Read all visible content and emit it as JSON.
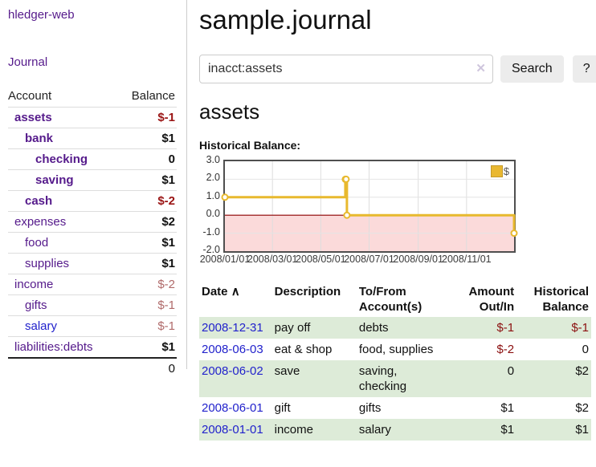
{
  "palette": {
    "link_purple": "#551a8b",
    "link_blue": "#2222cc",
    "negative_bold": "#9a1414",
    "negative_light": "#b06a6a",
    "negative_table": "#8b0f0f",
    "row_green": "#ddebd8",
    "chart_line": "#e8b92e",
    "chart_negative_fill": "#fbdada",
    "chart_zero_line": "#8b0000",
    "button_gray": "#ececec"
  },
  "sidebar": {
    "brand": "hledger-web",
    "nav": {
      "journal": "Journal"
    },
    "table": {
      "headers": {
        "account": "Account",
        "balance": "Balance"
      },
      "rows": [
        {
          "name": "assets",
          "balance": "$-1"
        },
        {
          "name": "bank",
          "balance": "$1"
        },
        {
          "name": "checking",
          "balance": "0"
        },
        {
          "name": "saving",
          "balance": "$1"
        },
        {
          "name": "cash",
          "balance": "$-2"
        },
        {
          "name": "expenses",
          "balance": "$2"
        },
        {
          "name": "food",
          "balance": "$1"
        },
        {
          "name": "supplies",
          "balance": "$1"
        },
        {
          "name": "income",
          "balance": "$-2"
        },
        {
          "name": "gifts",
          "balance": "$-1"
        },
        {
          "name": "salary",
          "balance": "$-1"
        },
        {
          "name": "liabilities:debts",
          "balance": "$1"
        }
      ],
      "total": "0"
    }
  },
  "main": {
    "title": "sample.journal",
    "search": {
      "value": "inacct:assets",
      "clear": "✕",
      "button": "Search",
      "help": "?"
    },
    "heading": "assets",
    "chart_title": "Historical Balance:"
  },
  "chart_data": {
    "type": "line",
    "step": true,
    "title": "Historical Balance:",
    "series": [
      {
        "name": "$",
        "color": "#e8b92e",
        "points": [
          {
            "date": "2008-01-01",
            "value": 1
          },
          {
            "date": "2008-06-01",
            "value": 2
          },
          {
            "date": "2008-06-02",
            "value": 2
          },
          {
            "date": "2008-06-03",
            "value": 0
          },
          {
            "date": "2008-12-31",
            "value": -1
          }
        ]
      }
    ],
    "x_range": [
      "2008-01-01",
      "2008-12-31"
    ],
    "x_tick_labels": [
      "2008/01/01",
      "2008/03/01",
      "2008/05/01",
      "2008/07/01",
      "2008/09/01",
      "2008/11/01"
    ],
    "y_ticks": [
      "3.0",
      "2.0",
      "1.0",
      "0.0",
      "-1.0",
      "-2.0"
    ],
    "ylim": [
      -2,
      3
    ],
    "grid": true,
    "legend": {
      "label": "$",
      "position": "top-right"
    }
  },
  "register": {
    "headers": {
      "date": "Date",
      "sort_indicator": "∧",
      "description": "Description",
      "account": "To/From\nAccount(s)",
      "amount": "Amount\nOut/In",
      "balance": "Historical\nBalance"
    },
    "rows": [
      {
        "date": "2008-12-31",
        "description": "pay off",
        "account": "debts",
        "amount": "$-1",
        "balance": "$-1"
      },
      {
        "date": "2008-06-03",
        "description": "eat & shop",
        "account": "food, supplies",
        "amount": "$-2",
        "balance": "0"
      },
      {
        "date": "2008-06-02",
        "description": "save",
        "account": "saving,\nchecking",
        "amount": "0",
        "balance": "$2"
      },
      {
        "date": "2008-06-01",
        "description": "gift",
        "account": "gifts",
        "amount": "$1",
        "balance": "$2"
      },
      {
        "date": "2008-01-01",
        "description": "income",
        "account": "salary",
        "amount": "$1",
        "balance": "$1"
      }
    ]
  }
}
